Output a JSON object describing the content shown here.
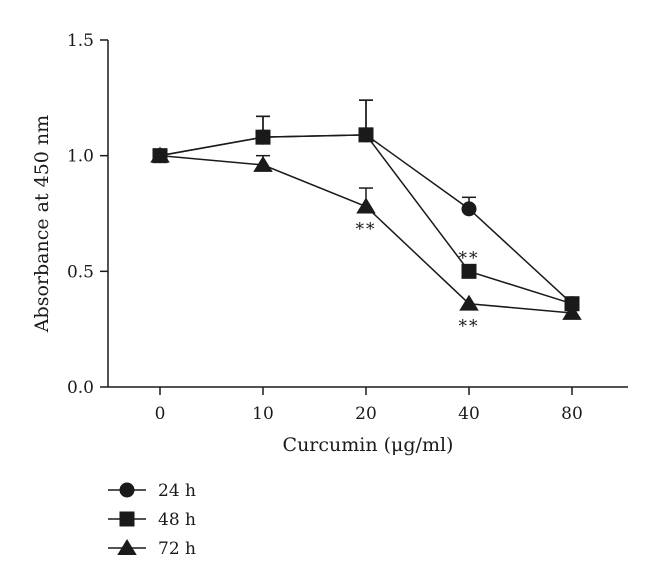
{
  "chart_data": {
    "type": "line",
    "categories": [
      "0",
      "10",
      "20",
      "40",
      "80"
    ],
    "xlabel": "Curcumin (μg/ml)",
    "ylabel": "Absorbance at 450 nm",
    "ylim": [
      0.0,
      1.5
    ],
    "yticks": [
      "0.0",
      "0.5",
      "1.0",
      "1.5"
    ],
    "grid": false,
    "legend_position": "bottom-left",
    "series": [
      {
        "name": "24 h",
        "marker": "circle",
        "values": [
          1.0,
          1.08,
          1.09,
          0.77,
          0.36
        ],
        "err": [
          0,
          0.09,
          0.15,
          0.05,
          0
        ]
      },
      {
        "name": "48 h",
        "marker": "square",
        "values": [
          1.0,
          1.08,
          1.09,
          0.5,
          0.36
        ],
        "err": [
          0,
          0.09,
          0.15,
          0,
          0
        ]
      },
      {
        "name": "72 h",
        "marker": "triangle",
        "values": [
          1.0,
          0.96,
          0.78,
          0.36,
          0.32
        ],
        "err": [
          0,
          0.04,
          0.08,
          0,
          0
        ]
      }
    ],
    "annotations": [
      {
        "text": "**",
        "category": "20",
        "series": "72 h",
        "placement": "below"
      },
      {
        "text": "**",
        "category": "40",
        "series": "48 h",
        "placement": "above"
      },
      {
        "text": "**",
        "category": "40",
        "series": "72 h",
        "placement": "below"
      }
    ]
  }
}
